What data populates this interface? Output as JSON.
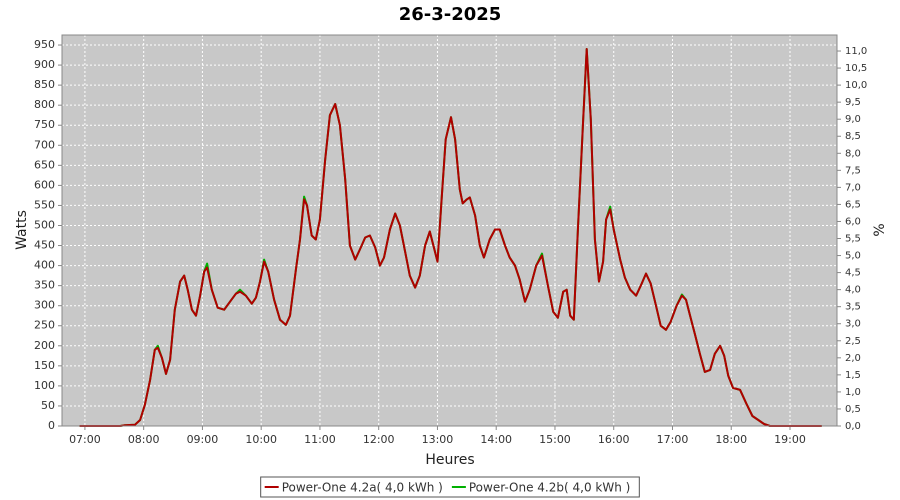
{
  "chart_data": {
    "type": "line",
    "title": "26-3-2025",
    "x_label": "Heures",
    "y_label": "Watts",
    "y2_label": "%",
    "x": [
      6.91,
      7.6,
      7.68,
      7.85,
      7.94,
      8.02,
      8.11,
      8.19,
      8.24,
      8.31,
      8.38,
      8.45,
      8.53,
      8.62,
      8.69,
      8.75,
      8.82,
      8.89,
      8.96,
      9.03,
      9.08,
      9.16,
      9.26,
      9.37,
      9.47,
      9.57,
      9.64,
      9.74,
      9.84,
      9.91,
      9.98,
      10.05,
      10.12,
      10.22,
      10.32,
      10.42,
      10.49,
      10.59,
      10.66,
      10.73,
      10.78,
      10.86,
      10.93,
      11.0,
      11.09,
      11.17,
      11.26,
      11.34,
      11.43,
      11.51,
      11.6,
      11.68,
      11.77,
      11.85,
      11.94,
      12.02,
      12.09,
      12.19,
      12.28,
      12.36,
      12.45,
      12.53,
      12.62,
      12.7,
      12.79,
      12.87,
      12.94,
      13.0,
      13.07,
      13.14,
      13.23,
      13.3,
      13.38,
      13.43,
      13.5,
      13.55,
      13.64,
      13.72,
      13.79,
      13.89,
      13.98,
      14.06,
      14.15,
      14.23,
      14.32,
      14.4,
      14.49,
      14.57,
      14.68,
      14.78,
      14.88,
      14.97,
      15.05,
      15.14,
      15.2,
      15.26,
      15.32,
      15.39,
      15.48,
      15.54,
      15.61,
      15.68,
      15.75,
      15.82,
      15.87,
      15.94,
      16.0,
      16.11,
      16.19,
      16.28,
      16.38,
      16.46,
      16.55,
      16.63,
      16.72,
      16.8,
      16.89,
      16.97,
      17.07,
      17.16,
      17.23,
      17.3,
      17.38,
      17.47,
      17.55,
      17.64,
      17.72,
      17.81,
      17.88,
      17.95,
      18.03,
      18.15,
      18.26,
      18.36,
      18.46,
      18.56,
      18.66,
      19.54
    ],
    "series": [
      {
        "name": "Power-One 4.2a( 4,0 kWh )",
        "color": "#b00000",
        "values": [
          0,
          0,
          2,
          3,
          15,
          52,
          115,
          190,
          195,
          170,
          130,
          165,
          290,
          360,
          375,
          340,
          290,
          275,
          325,
          385,
          395,
          340,
          295,
          290,
          310,
          330,
          335,
          325,
          305,
          320,
          360,
          410,
          385,
          315,
          265,
          252,
          275,
          390,
          465,
          565,
          550,
          475,
          465,
          515,
          665,
          775,
          803,
          750,
          615,
          450,
          415,
          440,
          470,
          475,
          445,
          400,
          420,
          490,
          530,
          500,
          435,
          375,
          345,
          375,
          450,
          485,
          445,
          410,
          565,
          715,
          770,
          715,
          590,
          555,
          565,
          570,
          525,
          450,
          420,
          465,
          490,
          490,
          450,
          420,
          400,
          365,
          310,
          340,
          400,
          425,
          350,
          285,
          270,
          335,
          340,
          275,
          265,
          490,
          765,
          940,
          765,
          465,
          360,
          410,
          515,
          540,
          490,
          415,
          370,
          340,
          325,
          350,
          380,
          355,
          300,
          250,
          240,
          260,
          300,
          325,
          315,
          275,
          230,
          178,
          135,
          140,
          180,
          200,
          175,
          125,
          95,
          90,
          55,
          25,
          15,
          5,
          0,
          0
        ]
      },
      {
        "name": "Power-One 4.2b( 4,0 kWh )",
        "color": "#00b000",
        "values": [
          0,
          0,
          2,
          3,
          15,
          52,
          115,
          190,
          200,
          170,
          130,
          165,
          290,
          360,
          375,
          340,
          290,
          275,
          325,
          385,
          405,
          340,
          295,
          290,
          310,
          330,
          340,
          325,
          305,
          320,
          360,
          415,
          385,
          315,
          265,
          252,
          275,
          390,
          465,
          572,
          550,
          475,
          465,
          515,
          665,
          775,
          803,
          750,
          615,
          450,
          415,
          440,
          470,
          475,
          445,
          400,
          420,
          490,
          530,
          500,
          435,
          375,
          345,
          375,
          450,
          485,
          445,
          410,
          565,
          715,
          770,
          715,
          590,
          555,
          565,
          570,
          525,
          450,
          420,
          465,
          490,
          490,
          450,
          420,
          400,
          365,
          310,
          340,
          400,
          430,
          350,
          285,
          270,
          335,
          340,
          275,
          265,
          490,
          765,
          940,
          765,
          465,
          360,
          410,
          515,
          547,
          490,
          415,
          370,
          340,
          325,
          350,
          380,
          355,
          300,
          250,
          240,
          260,
          300,
          328,
          315,
          275,
          230,
          178,
          135,
          140,
          180,
          200,
          175,
          125,
          95,
          90,
          55,
          25,
          15,
          5,
          0,
          0
        ]
      }
    ],
    "xlim": [
      6.61,
      19.8
    ],
    "xticks": [
      {
        "value": 7,
        "label": "07:00"
      },
      {
        "value": 8,
        "label": "08:00"
      },
      {
        "value": 9,
        "label": "09:00"
      },
      {
        "value": 10,
        "label": "10:00"
      },
      {
        "value": 11,
        "label": "11:00"
      },
      {
        "value": 12,
        "label": "12:00"
      },
      {
        "value": 13,
        "label": "13:00"
      },
      {
        "value": 14,
        "label": "14:00"
      },
      {
        "value": 15,
        "label": "15:00"
      },
      {
        "value": 16,
        "label": "16:00"
      },
      {
        "value": 17,
        "label": "17:00"
      },
      {
        "value": 18,
        "label": "18:00"
      },
      {
        "value": 19,
        "label": "19:00"
      }
    ],
    "ylim": [
      0,
      975
    ],
    "yticks": [
      0,
      50,
      100,
      150,
      200,
      250,
      300,
      350,
      400,
      450,
      500,
      550,
      600,
      650,
      700,
      750,
      800,
      850,
      900,
      950
    ],
    "y2lim": [
      0,
      11.47
    ],
    "y2ticks": [
      {
        "value": 0,
        "label": "0,0"
      },
      {
        "value": 0.5,
        "label": "0,5"
      },
      {
        "value": 1,
        "label": "1,0"
      },
      {
        "value": 1.5,
        "label": "1,5"
      },
      {
        "value": 2,
        "label": "2,0"
      },
      {
        "value": 2.5,
        "label": "2,5"
      },
      {
        "value": 3,
        "label": "3,0"
      },
      {
        "value": 3.5,
        "label": "3,5"
      },
      {
        "value": 4,
        "label": "4,0"
      },
      {
        "value": 4.5,
        "label": "4,5"
      },
      {
        "value": 5,
        "label": "5,0"
      },
      {
        "value": 5.5,
        "label": "5,5"
      },
      {
        "value": 6,
        "label": "6,0"
      },
      {
        "value": 6.5,
        "label": "6,5"
      },
      {
        "value": 7,
        "label": "7,0"
      },
      {
        "value": 7.5,
        "label": "7,5"
      },
      {
        "value": 8,
        "label": "8,0"
      },
      {
        "value": 8.5,
        "label": "8,5"
      },
      {
        "value": 9,
        "label": "9,0"
      },
      {
        "value": 9.5,
        "label": "9,5"
      },
      {
        "value": 10,
        "label": "10,0"
      },
      {
        "value": 10.5,
        "label": "10,5"
      },
      {
        "value": 11,
        "label": "11,0"
      }
    ],
    "grid": true,
    "legend": "bottom"
  }
}
